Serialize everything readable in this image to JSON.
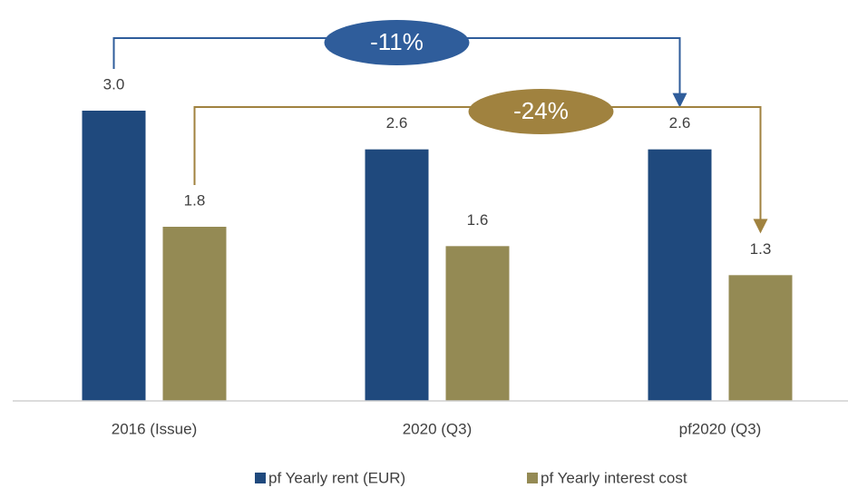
{
  "chart_data": {
    "type": "bar",
    "categories": [
      "2016 (Issue)",
      "2020 (Q3)",
      "pf2020 (Q3)"
    ],
    "series": [
      {
        "name": "pf Yearly rent (EUR)",
        "color": "#1f497d",
        "values": [
          3.0,
          2.6,
          2.6
        ],
        "value_labels": [
          "3.0",
          "2.6",
          "2.6"
        ]
      },
      {
        "name": "pf Yearly interest cost",
        "color": "#948a54",
        "values": [
          1.8,
          1.6,
          1.3
        ],
        "value_labels": [
          "1.8",
          "1.6",
          "1.3"
        ]
      }
    ],
    "ylim": [
      0,
      3.0
    ],
    "legend": "bottom",
    "annotations": [
      {
        "text": "-11%",
        "color": "#2f5d9b"
      },
      {
        "text": "-24%",
        "color": "#a0823f"
      }
    ]
  }
}
